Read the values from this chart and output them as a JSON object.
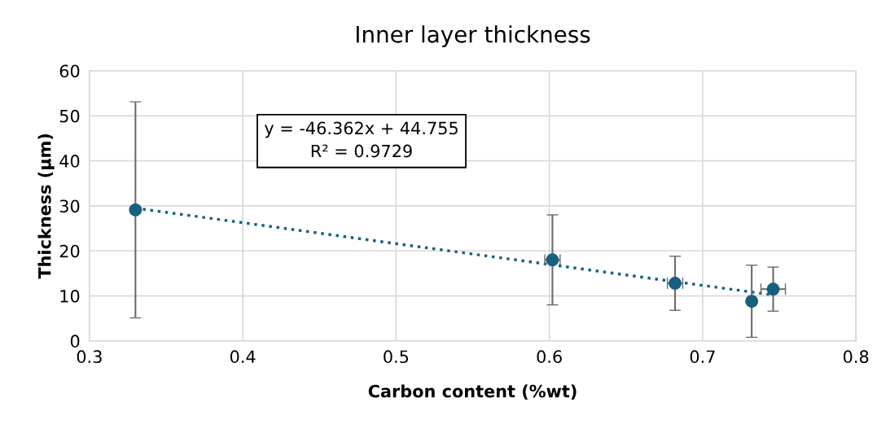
{
  "chart_data": {
    "type": "scatter",
    "title": "Inner layer thickness",
    "xlabel": "Carbon content (%wt)",
    "ylabel": "Thickness (µm)",
    "xlim": [
      0.3,
      0.8
    ],
    "xticks": [
      0.3,
      0.4,
      0.5,
      0.6,
      0.7,
      0.8
    ],
    "ylim": [
      0,
      60
    ],
    "yticks": [
      0,
      10,
      20,
      30,
      40,
      50,
      60
    ],
    "grid": true,
    "marker": "circle",
    "annotations": [
      "y = -46.362x + 44.755\nR² = 0.9729"
    ],
    "series": [
      {
        "color": "#17607f",
        "x": [
          0.33,
          0.602,
          0.682,
          0.732,
          0.746
        ],
        "values": [
          29.1,
          18,
          12.8,
          8.8,
          11.5
        ],
        "errors": [
          24,
          10,
          6,
          8,
          4.9
        ],
        "xerrors": [
          null,
          0.005,
          0.005,
          null,
          0.008
        ]
      },
      {
        "type": "line",
        "color": "#17607f",
        "line_style": "dotted",
        "marker": "none",
        "x": [
          0.33,
          0.746
        ],
        "values": [
          29.5,
          10.2
        ]
      }
    ]
  }
}
